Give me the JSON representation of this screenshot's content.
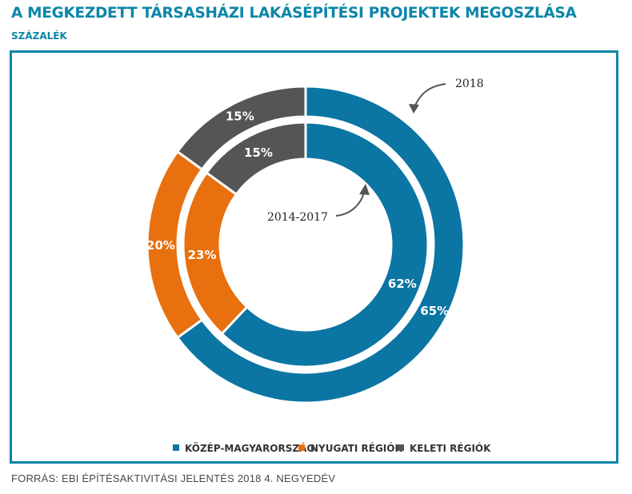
{
  "title": "A MEGKEZDETT TÁRSASHÁZI LAKÁSÉPÍTÉSI PROJEKTEK MEGOSZLÁSA",
  "subtitle": "SZÁZALÉK",
  "source": "FORRÁS: EBI ÉPÍTÉSAKTIVITÁSI JELENTÉS 2018 4. NEGYEDÉV",
  "colors": {
    "kozep": "#0b75a3",
    "nyugati": "#e8700f",
    "keleti": "#555555",
    "accent": "#0b86a8"
  },
  "chart_data": {
    "type": "pie",
    "variant": "nested-donut",
    "categories": [
      "KÖZÉP-MAGYARORSZÁG",
      "NYUGATI RÉGIÓK",
      "KELETI RÉGIÓK"
    ],
    "series": [
      {
        "name": "2018",
        "ring": "outer",
        "values": [
          65,
          20,
          15
        ],
        "labels": [
          "65%",
          "20%",
          "15%"
        ]
      },
      {
        "name": "2014-2017",
        "ring": "inner",
        "values": [
          62,
          23,
          15
        ],
        "labels": [
          "62%",
          "23%",
          "15%"
        ]
      }
    ],
    "legend": [
      {
        "label": "KÖZÉP-MAGYARORSZÁG",
        "color": "#0b75a3"
      },
      {
        "label": "NYUGATI RÉGIÓK",
        "color": "#e8700f"
      },
      {
        "label": "KELETI RÉGIÓK",
        "color": "#555555"
      }
    ],
    "legend_position": "bottom-center",
    "annotations": [
      "2018",
      "2014-2017"
    ]
  }
}
